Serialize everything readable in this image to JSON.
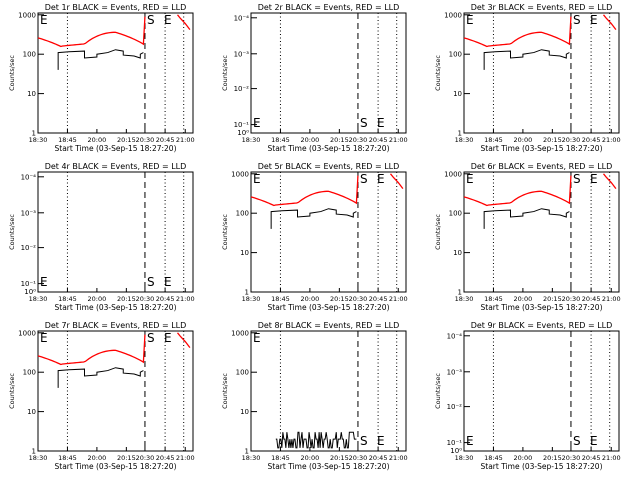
{
  "xlabel": "Start Time (03-Sep-15 18:27:20)",
  "ylabel": "Counts/sec",
  "x_ticks": [
    "18:30",
    "18:45",
    "20:00",
    "20:15",
    "20:30",
    "20:45",
    "21:00"
  ],
  "y_ticks_log": [
    "1",
    "10",
    "100",
    "1000"
  ],
  "y_ticks_zero": [
    "10⁻¹",
    "10⁻²",
    "10⁻³",
    "10⁻⁴"
  ],
  "y_tick_zero_bottom": "10⁰",
  "markers": {
    "s": "S",
    "e": "E"
  },
  "colors": {
    "events": "#000000",
    "lld": "#ff0000"
  },
  "chart_data": [
    {
      "type": "line",
      "title": "Det 1r BLACK = Events, RED = LLD",
      "scale": "log",
      "ylim": [
        1,
        1000
      ],
      "profile": "full"
    },
    {
      "type": "line",
      "title": "Det 2r BLACK = Events, RED = LLD",
      "scale": "zero",
      "ylim": [
        1,
        0.0001
      ],
      "profile": "none"
    },
    {
      "type": "line",
      "title": "Det 3r BLACK = Events, RED = LLD",
      "scale": "log",
      "ylim": [
        1,
        1000
      ],
      "profile": "full"
    },
    {
      "type": "line",
      "title": "Det 4r BLACK = Events, RED = LLD",
      "scale": "zero",
      "ylim": [
        1,
        0.0001
      ],
      "profile": "none"
    },
    {
      "type": "line",
      "title": "Det 5r BLACK = Events, RED = LLD",
      "scale": "log",
      "ylim": [
        1,
        1000
      ],
      "profile": "full"
    },
    {
      "type": "line",
      "title": "Det 6r BLACK = Events, RED = LLD",
      "scale": "log",
      "ylim": [
        1,
        1000
      ],
      "profile": "full"
    },
    {
      "type": "line",
      "title": "Det 7r BLACK = Events, RED = LLD",
      "scale": "log",
      "ylim": [
        1,
        1000
      ],
      "profile": "full"
    },
    {
      "type": "line",
      "title": "Det 8r BLACK = Events, RED = LLD",
      "scale": "log",
      "ylim": [
        1,
        1000
      ],
      "profile": "noise"
    },
    {
      "type": "line",
      "title": "Det 9r BLACK = Events, RED = LLD",
      "scale": "zero",
      "ylim": [
        1,
        0.0001
      ],
      "profile": "none"
    }
  ]
}
